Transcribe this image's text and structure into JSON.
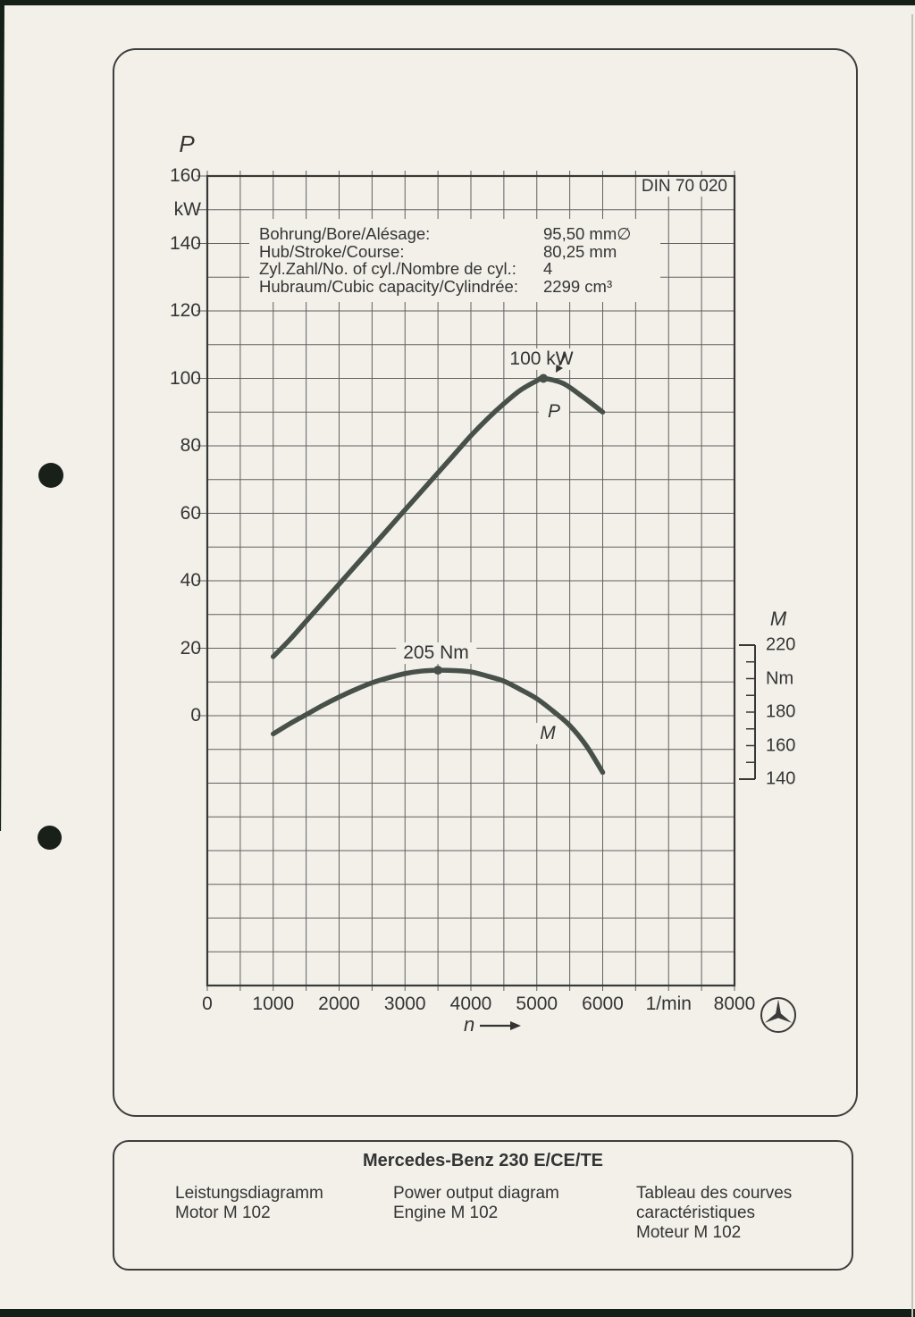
{
  "document": {
    "din_standard": "DIN 70 020",
    "specs": [
      {
        "label": "Bohrung/Bore/Alésage:",
        "value": "95,50 mm∅"
      },
      {
        "label": "Hub/Stroke/Course:",
        "value": "80,25 mm"
      },
      {
        "label": "Zyl.Zahl/No. of cyl./Nombre de cyl.:",
        "value": "4"
      },
      {
        "label": "Hubraum/Cubic capacity/Cylindrée:",
        "value": "2299 cm³"
      }
    ],
    "footer": {
      "title": "Mercedes-Benz 230 E/CE/TE",
      "columns": [
        {
          "lines": [
            "Leistungsdiagramm",
            "Motor M 102"
          ]
        },
        {
          "lines": [
            "Power output diagram",
            "Engine M 102"
          ]
        },
        {
          "lines": [
            "Tableau des courves",
            "caractéristiques",
            "Moteur M 102"
          ]
        }
      ]
    }
  },
  "chart_data": {
    "type": "line",
    "title": "Power output diagram Engine M 102",
    "standard": "DIN 70 020",
    "grid": true,
    "x_axis": {
      "label": "n",
      "unit": "1/min",
      "min": 0,
      "max": 8000,
      "grid_step": 500,
      "ticks": [
        {
          "label": "0",
          "value": 0
        },
        {
          "label": "1000",
          "value": 1000
        },
        {
          "label": "2000",
          "value": 2000
        },
        {
          "label": "3000",
          "value": 3000
        },
        {
          "label": "4000",
          "value": 4000
        },
        {
          "label": "5000",
          "value": 5000
        },
        {
          "label": "6000",
          "value": 6000
        },
        {
          "label": "1/min",
          "value": 7000
        },
        {
          "label": "8000",
          "value": 8000
        }
      ]
    },
    "y_left_axis": {
      "title": "P",
      "unit": "kW",
      "min": -80,
      "max": 160,
      "grid_step": 10,
      "ticks": [
        {
          "label": "160",
          "value": 160
        },
        {
          "label": "kW",
          "value": 150
        },
        {
          "label": "140",
          "value": 140
        },
        {
          "label": "120",
          "value": 120
        },
        {
          "label": "100",
          "value": 100
        },
        {
          "label": "80",
          "value": 80
        },
        {
          "label": "60",
          "value": 60
        },
        {
          "label": "40",
          "value": 40
        },
        {
          "label": "20",
          "value": 20
        },
        {
          "label": "0",
          "value": 0
        }
      ]
    },
    "y_right_axis": {
      "title": "M",
      "unit": "Nm",
      "min": 140,
      "max": 220,
      "tick_step": 10,
      "ticks": [
        {
          "label": "220",
          "value": 220
        },
        {
          "label": "Nm",
          "value": 200
        },
        {
          "label": "180",
          "value": 180
        },
        {
          "label": "160",
          "value": 160
        },
        {
          "label": "140",
          "value": 140
        }
      ]
    },
    "series": [
      {
        "name": "P",
        "curve_label": "P",
        "axis": "left",
        "unit": "kW",
        "annotation": "100 kW",
        "peak": {
          "rpm": 5100,
          "value": 100
        },
        "points": [
          [
            1000,
            17.5
          ],
          [
            1250,
            22.5
          ],
          [
            1500,
            28
          ],
          [
            1750,
            33.5
          ],
          [
            2000,
            39
          ],
          [
            2250,
            44.5
          ],
          [
            2500,
            50
          ],
          [
            2750,
            55.5
          ],
          [
            3000,
            61
          ],
          [
            3250,
            66.5
          ],
          [
            3500,
            72
          ],
          [
            3750,
            77.5
          ],
          [
            4000,
            83
          ],
          [
            4250,
            88
          ],
          [
            4500,
            92.5
          ],
          [
            4750,
            96.5
          ],
          [
            5000,
            99.3
          ],
          [
            5100,
            100
          ],
          [
            5400,
            98.5
          ],
          [
            5700,
            94.5
          ],
          [
            6000,
            90
          ]
        ]
      },
      {
        "name": "M",
        "curve_label": "M",
        "axis": "right",
        "unit": "Nm",
        "annotation": "205 Nm",
        "peak": {
          "rpm": 3500,
          "value": 205
        },
        "points": [
          [
            1000,
            167
          ],
          [
            1250,
            173
          ],
          [
            1500,
            178.5
          ],
          [
            1750,
            184
          ],
          [
            2000,
            189
          ],
          [
            2250,
            193.5
          ],
          [
            2500,
            197.5
          ],
          [
            2750,
            200.5
          ],
          [
            3000,
            203
          ],
          [
            3250,
            204.5
          ],
          [
            3500,
            205
          ],
          [
            3750,
            204.8
          ],
          [
            4000,
            204
          ],
          [
            4250,
            201.5
          ],
          [
            4500,
            198.5
          ],
          [
            4750,
            193.5
          ],
          [
            5000,
            188
          ],
          [
            5250,
            180.5
          ],
          [
            5500,
            172
          ],
          [
            5750,
            160
          ],
          [
            6000,
            144
          ]
        ]
      }
    ]
  },
  "colors": {
    "page_bg": "#f2f0e9",
    "edge": "#141f18",
    "curve": "#47514a",
    "grid": "#616161",
    "text": "#343434"
  }
}
